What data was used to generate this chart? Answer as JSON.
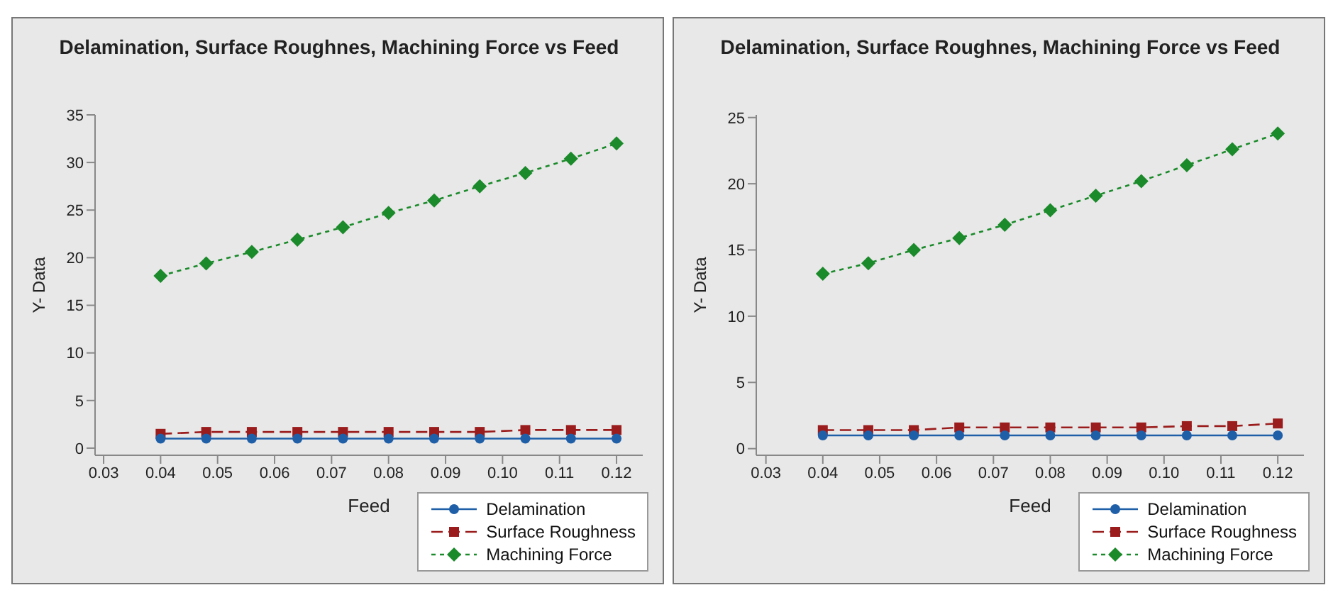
{
  "chart_data": [
    {
      "type": "line",
      "title": "Delamination, Surface Roughnes, Machining Force vs Feed",
      "xlabel": "Feed",
      "ylabel": "Y- Data",
      "x": [
        0.04,
        0.048,
        0.056,
        0.064,
        0.072,
        0.08,
        0.088,
        0.096,
        0.104,
        0.112,
        0.12
      ],
      "series": [
        {
          "name": "Delamination",
          "color": "#1f5fa8",
          "marker": "circle",
          "line_style": "solid",
          "values": [
            1.0,
            1.0,
            1.0,
            1.0,
            1.0,
            1.0,
            1.0,
            1.0,
            1.0,
            1.0,
            1.0
          ]
        },
        {
          "name": "Surface Roughness",
          "color": "#9b1c1c",
          "marker": "square",
          "line_style": "dashed",
          "values": [
            1.5,
            1.7,
            1.7,
            1.7,
            1.7,
            1.7,
            1.7,
            1.7,
            1.9,
            1.9,
            1.9
          ]
        },
        {
          "name": "Machining Force",
          "color": "#1a8a2a",
          "marker": "diamond",
          "line_style": "dotted",
          "values": [
            18.1,
            19.4,
            20.6,
            21.9,
            23.2,
            24.7,
            26.0,
            27.5,
            28.9,
            30.4,
            32.0
          ]
        }
      ],
      "xlim": [
        0.0285,
        0.1246
      ],
      "xticks": [
        0.03,
        0.04,
        0.05,
        0.06,
        0.07,
        0.08,
        0.09,
        {
          "value": 0.1,
          "label": "0.10"
        },
        0.11,
        0.12
      ],
      "ylim": [
        -0.75,
        35
      ],
      "yticks": [
        0,
        5,
        10,
        15,
        20,
        25,
        30,
        35
      ],
      "grid": false,
      "legend": "bottom right"
    },
    {
      "type": "line",
      "title": "Delamination, Surface Roughnes, Machining Force vs Feed",
      "xlabel": "Feed",
      "ylabel": "Y- Data",
      "x": [
        0.04,
        0.048,
        0.056,
        0.064,
        0.072,
        0.08,
        0.088,
        0.096,
        0.104,
        0.112,
        0.12
      ],
      "series": [
        {
          "name": "Delamination",
          "color": "#1f5fa8",
          "marker": "circle",
          "line_style": "solid",
          "values": [
            1.0,
            1.0,
            1.0,
            1.0,
            1.0,
            1.0,
            1.0,
            1.0,
            1.0,
            1.0,
            1.0
          ]
        },
        {
          "name": "Surface Roughness",
          "color": "#9b1c1c",
          "marker": "square",
          "line_style": "dashed",
          "values": [
            1.4,
            1.4,
            1.4,
            1.6,
            1.6,
            1.6,
            1.6,
            1.6,
            1.7,
            1.7,
            1.9
          ]
        },
        {
          "name": "Machining Force",
          "color": "#1a8a2a",
          "marker": "diamond",
          "line_style": "dotted",
          "values": [
            13.2,
            14.0,
            15.0,
            15.9,
            16.9,
            18.0,
            19.1,
            20.2,
            21.4,
            22.6,
            23.8
          ]
        }
      ],
      "xlim": [
        0.0283,
        0.1246
      ],
      "xticks": [
        0.03,
        0.04,
        0.05,
        0.06,
        0.07,
        0.08,
        0.09,
        {
          "value": 0.1,
          "label": "0.10"
        },
        0.11,
        0.12
      ],
      "ylim": [
        -0.5,
        25.2
      ],
      "yticks": [
        0,
        5,
        10,
        15,
        20,
        25
      ],
      "grid": false,
      "legend": "bottom right"
    }
  ]
}
